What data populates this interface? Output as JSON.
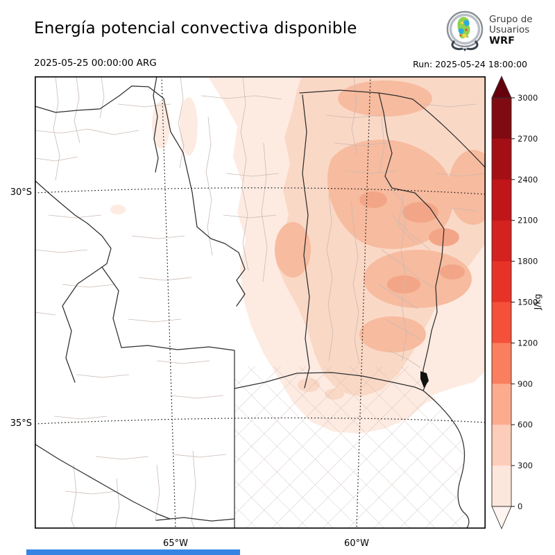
{
  "header": {
    "title": "Energía potencial convectiva disponible",
    "valid_time": "2025-05-25 00:00:00 ARG",
    "run_label": "Run: 2025-05-24 18:00:00",
    "logo": {
      "line1": "Grupo de",
      "line2": "Usuarios",
      "line3": "WRF"
    }
  },
  "axes": {
    "y_ticks": [
      "30°S",
      "35°S"
    ],
    "x_ticks": [
      "65°W",
      "60°W"
    ]
  },
  "colorbar": {
    "unit": "J/kg",
    "tick_labels_top_to_bottom": [
      "3000",
      "2700",
      "2400",
      "2100",
      "1800",
      "1500",
      "1200",
      "900",
      "600",
      "300",
      "0"
    ],
    "segment_colors_top_to_bottom": [
      "#7f0a11",
      "#a30f15",
      "#c01519",
      "#d42220",
      "#e73327",
      "#f4503a",
      "#fa7f5f",
      "#fcab8d",
      "#fccdb9",
      "#fde6db"
    ],
    "over_color": "#67000d",
    "under_color": "#fff4ef"
  },
  "map": {
    "shade_colors": [
      "#fdebe2",
      "#fad8c6",
      "#f7bb9f",
      "#f3a687"
    ]
  },
  "footer": {
    "bar_color": "#3584e4"
  },
  "chart_data": {
    "type": "heatmap",
    "title": "Energía potencial convectiva disponible",
    "variable_unit": "J/kg",
    "colorbar_levels": [
      0,
      300,
      600,
      900,
      1200,
      1500,
      1800,
      2100,
      2400,
      2700,
      3000
    ],
    "colormap": "Reds (discrete, extended both ends)",
    "lat_gridlines": [
      "30°S",
      "35°S"
    ],
    "lon_gridlines": [
      "65°W",
      "60°W"
    ],
    "legend_position": "right",
    "notes_visible": "Filled CAPE shading concentrated over northeast/center of mapped Argentina region; values shown reach the 600–1200 J/kg bands; west and south mostly near 0."
  }
}
